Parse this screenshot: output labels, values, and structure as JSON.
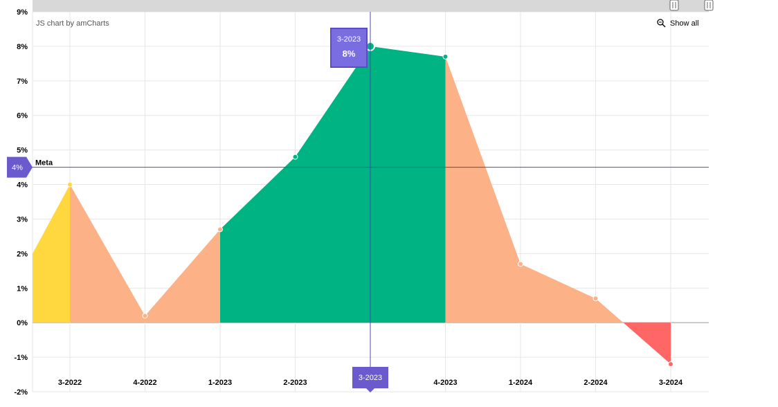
{
  "credit": "JS chart by amCharts",
  "show_all_label": "Show all",
  "goal": {
    "label": "Meta",
    "value": 4.5,
    "badge": "4%"
  },
  "cursor": {
    "category": "3-2023",
    "tooltip_category": "3-2023",
    "tooltip_value": "8%"
  },
  "colors": {
    "above_goal": "#00b383",
    "below_goal": "#fcb187",
    "negative": "#ff6666",
    "first_segment": "#ffd83f",
    "goal_line": "#5148a8",
    "accent": "#6a5acd",
    "grid": "#e6e6e6",
    "scrollbar": "#d8d8d8"
  },
  "chart_data": {
    "type": "area",
    "title": "",
    "xlabel": "",
    "ylabel": "",
    "categories": [
      "3-2022",
      "4-2022",
      "1-2023",
      "2-2023",
      "3-2023",
      "4-2023",
      "1-2024",
      "2-2024",
      "3-2024"
    ],
    "series": [
      {
        "values": [
          4.0,
          0.2,
          2.7,
          4.8,
          8.0,
          7.7,
          1.7,
          0.7,
          -1.2
        ]
      }
    ],
    "first_point_value": 2.0,
    "ylim": [
      -2,
      9
    ],
    "y_ticks": [
      -2,
      -1,
      0,
      1,
      2,
      3,
      4,
      5,
      6,
      7,
      8,
      9
    ],
    "y_tick_labels": [
      "-2%",
      "-1%",
      "0%",
      "1%",
      "2%",
      "3%",
      "4%",
      "5%",
      "6%",
      "7%",
      "8%",
      "9%"
    ],
    "grid": true,
    "legend": "none"
  }
}
